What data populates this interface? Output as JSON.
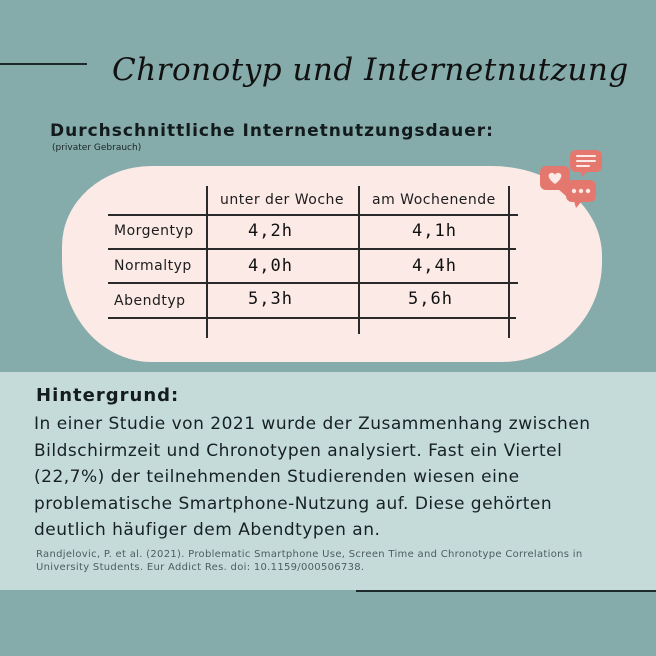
{
  "colors": {
    "background": "#86abab",
    "panel": "#c4dbda",
    "blob": "#fbeae5",
    "icon_red": "#e5786e"
  },
  "header": {
    "title": "Chronotyp und Internetnutzung",
    "subtitle": "Durchschnittliche Internetnutzungsdauer:",
    "note": "(privater Gebrauch)"
  },
  "table": {
    "columns": [
      "unter der Woche",
      "am Wochenende"
    ],
    "rows": [
      {
        "label": "Morgentyp",
        "weekday": "4,2h",
        "weekend": "4,1h"
      },
      {
        "label": "Normaltyp",
        "weekday": "4,0h",
        "weekend": "4,4h"
      },
      {
        "label": "Abendtyp",
        "weekday": "5,3h",
        "weekend": "5,6h"
      }
    ]
  },
  "icons": [
    "chat-heart-icon",
    "chat-lines-icon",
    "chat-dots-icon"
  ],
  "background_section": {
    "heading": "Hintergrund:",
    "lines": [
      "In einer Studie von 2021 wurde der Zusammenhang zwischen",
      "Bildschirmzeit und Chronotypen analysiert. Fast ein Viertel",
      "(22,7%) der teilnehmenden Studierenden wiesen eine",
      "problematische Smartphone-Nutzung auf. Diese gehörten",
      "deutlich häufiger dem Abendtypen an."
    ],
    "reference_lines": [
      "Randjelovic, P. et al. (2021). Problematic Smartphone Use, Screen Time and Chronotype Correlations in",
      "University Students. Eur Addict Res. doi: 10.1159/000506738."
    ]
  }
}
